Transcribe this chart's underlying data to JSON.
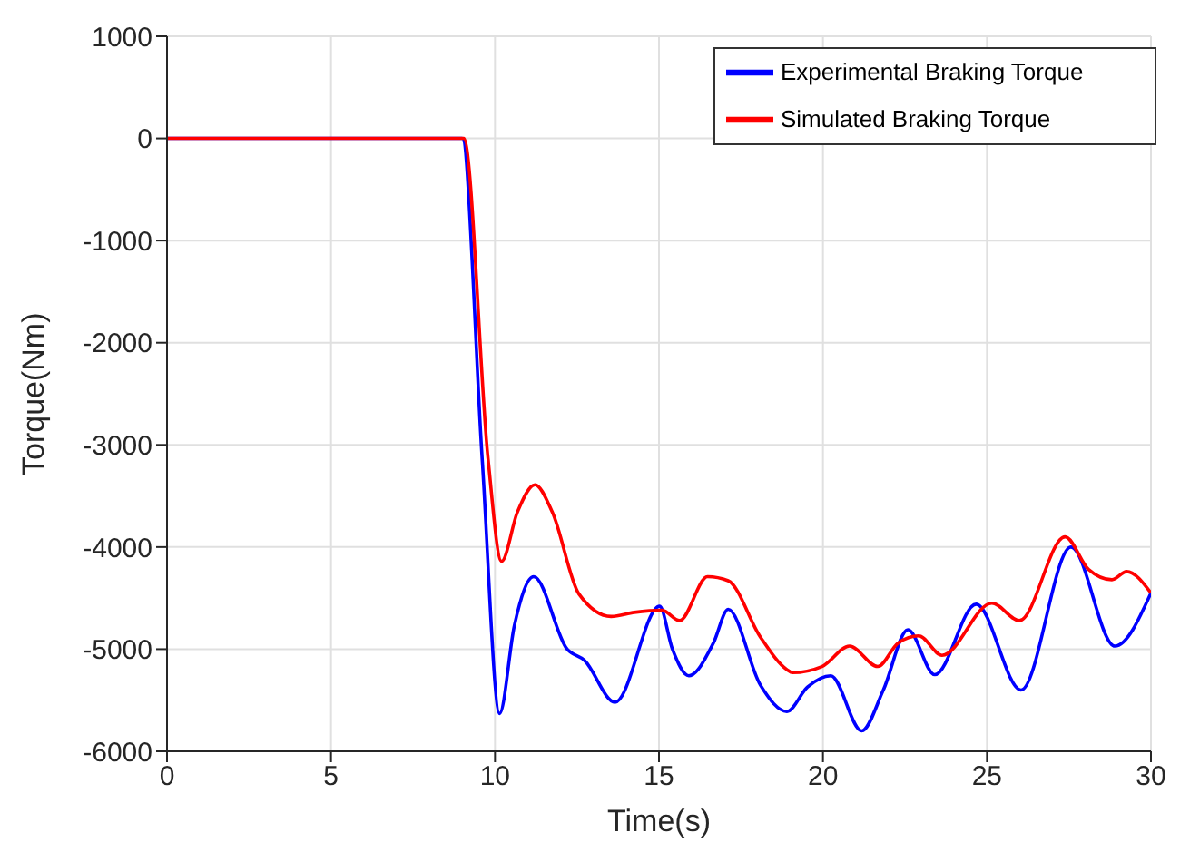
{
  "chart_data": {
    "type": "line",
    "xlabel": "Time(s)",
    "ylabel": "Torque(Nm)",
    "xlim": [
      0,
      30
    ],
    "xticks": [
      0,
      5,
      10,
      15,
      20,
      25,
      30
    ],
    "ylim": [
      -6000,
      1000
    ],
    "yticks": [
      -6000,
      -5000,
      -4000,
      -3000,
      -2000,
      -1000,
      0,
      1000
    ],
    "grid": true,
    "legend": "top right",
    "marker": "none",
    "line_style": "solid",
    "series": [
      {
        "name": "Experimental Braking Torque",
        "color": "#0000ff",
        "x": [
          0,
          9,
          9.61,
          10.14,
          10.59,
          11.18,
          12.2,
          12.73,
          13.66,
          15.02,
          15.41,
          15.91,
          16.66,
          17.11,
          18.09,
          18.9,
          19.53,
          20.24,
          21.18,
          21.84,
          22.59,
          23.41,
          24.67,
          26.04,
          27.56,
          28.9,
          30
        ],
        "values": [
          0,
          0,
          -3140,
          -5630,
          -4770,
          -4290,
          -5000,
          -5110,
          -5520,
          -4580,
          -5000,
          -5260,
          -4940,
          -4610,
          -5350,
          -5610,
          -5370,
          -5260,
          -5800,
          -5400,
          -4810,
          -5250,
          -4560,
          -5400,
          -4000,
          -4970,
          -4450
        ]
      },
      {
        "name": "Simulated Braking Torque",
        "color": "#ff0000",
        "x": [
          0,
          9.05,
          9.79,
          10.2,
          10.68,
          11.22,
          11.75,
          12.56,
          13.54,
          14.25,
          15.1,
          15.63,
          16.48,
          17.11,
          18.09,
          18.9,
          19.07,
          19.97,
          20.81,
          21.67,
          22.29,
          22.92,
          23.63,
          25.15,
          25.99,
          27.38,
          28.1,
          28.81,
          29.26,
          30
        ],
        "values": [
          0,
          0,
          -3140,
          -4140,
          -3660,
          -3390,
          -3660,
          -4460,
          -4680,
          -4640,
          -4620,
          -4720,
          -4290,
          -4330,
          -4880,
          -5200,
          -5230,
          -5170,
          -4970,
          -5170,
          -4940,
          -4870,
          -5060,
          -4550,
          -4720,
          -3900,
          -4220,
          -4320,
          -4240,
          -4450
        ]
      }
    ]
  }
}
